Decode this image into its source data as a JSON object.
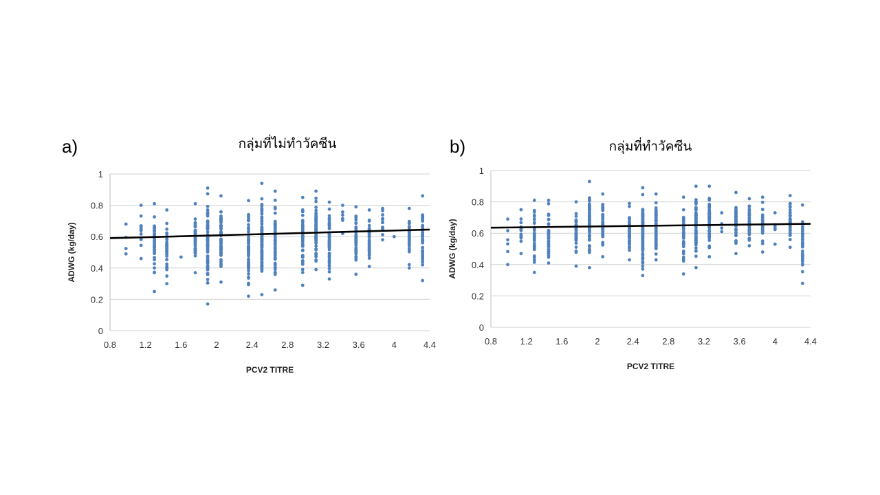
{
  "chart_data": [
    {
      "type": "scatter",
      "panel_label": "a)",
      "title": "กลุ่มที่ไม่ทำวัคซีน",
      "xlabel": "PCV2 TITRE",
      "ylabel": "ADWG (kg/day)",
      "xlim": [
        0.8,
        4.4
      ],
      "ylim": [
        0,
        1
      ],
      "xticks": [
        "0.8",
        "1.2",
        "1.6",
        "2",
        "2.4",
        "2.8",
        "3.2",
        "3.6",
        "4",
        "4.4"
      ],
      "yticks": [
        "0",
        "0.2",
        "0.4",
        "0.6",
        "0.8",
        "1"
      ],
      "grid": true,
      "trendline": {
        "x": [
          0.8,
          4.4
        ],
        "y": [
          0.59,
          0.645
        ]
      },
      "columns": [
        {
          "x": 0.98,
          "min": 0.49,
          "max": 0.68,
          "n": 4
        },
        {
          "x": 1.15,
          "min": 0.46,
          "max": 0.8,
          "n": 14
        },
        {
          "x": 1.3,
          "min": 0.25,
          "max": 0.81,
          "n": 40
        },
        {
          "x": 1.44,
          "min": 0.3,
          "max": 0.77,
          "n": 36
        },
        {
          "x": 1.6,
          "min": 0.47,
          "max": 0.47,
          "n": 1
        },
        {
          "x": 1.76,
          "min": 0.37,
          "max": 0.81,
          "n": 40
        },
        {
          "x": 1.9,
          "min": 0.17,
          "max": 0.91,
          "n": 80
        },
        {
          "x": 2.05,
          "min": 0.31,
          "max": 0.86,
          "n": 60
        },
        {
          "x": 2.36,
          "min": 0.22,
          "max": 0.83,
          "n": 60
        },
        {
          "x": 2.51,
          "min": 0.23,
          "max": 0.94,
          "n": 90
        },
        {
          "x": 2.66,
          "min": 0.26,
          "max": 0.89,
          "n": 70
        },
        {
          "x": 2.97,
          "min": 0.29,
          "max": 0.85,
          "n": 50
        },
        {
          "x": 3.12,
          "min": 0.39,
          "max": 0.89,
          "n": 70
        },
        {
          "x": 3.27,
          "min": 0.33,
          "max": 0.82,
          "n": 50
        },
        {
          "x": 3.42,
          "min": 0.62,
          "max": 0.8,
          "n": 6
        },
        {
          "x": 3.57,
          "min": 0.36,
          "max": 0.79,
          "n": 40
        },
        {
          "x": 3.72,
          "min": 0.41,
          "max": 0.77,
          "n": 40
        },
        {
          "x": 3.87,
          "min": 0.58,
          "max": 0.78,
          "n": 14
        },
        {
          "x": 4.0,
          "min": 0.6,
          "max": 0.6,
          "n": 1
        },
        {
          "x": 4.17,
          "min": 0.4,
          "max": 0.78,
          "n": 40
        },
        {
          "x": 4.32,
          "min": 0.32,
          "max": 0.86,
          "n": 50
        }
      ]
    },
    {
      "type": "scatter",
      "panel_label": "b)",
      "title": "กลุ่มที่ทำวัคซีน",
      "xlabel": "PCV2 TITRE",
      "ylabel": "ADWG (kg/day)",
      "xlim": [
        0.8,
        4.4
      ],
      "ylim": [
        0,
        1
      ],
      "xticks": [
        "0.8",
        "1.2",
        "1.6",
        "2",
        "2.4",
        "2.8",
        "3.2",
        "3.6",
        "4",
        "4.4"
      ],
      "yticks": [
        "0",
        "0.2",
        "0.4",
        "0.6",
        "0.8",
        "1"
      ],
      "grid": true,
      "trendline": {
        "x": [
          0.8,
          4.4
        ],
        "y": [
          0.635,
          0.66
        ]
      },
      "columns": [
        {
          "x": 0.99,
          "min": 0.4,
          "max": 0.69,
          "n": 6
        },
        {
          "x": 1.14,
          "min": 0.47,
          "max": 0.75,
          "n": 16
        },
        {
          "x": 1.29,
          "min": 0.35,
          "max": 0.81,
          "n": 40
        },
        {
          "x": 1.45,
          "min": 0.41,
          "max": 0.81,
          "n": 36
        },
        {
          "x": 1.76,
          "min": 0.39,
          "max": 0.8,
          "n": 40
        },
        {
          "x": 1.91,
          "min": 0.38,
          "max": 0.93,
          "n": 70
        },
        {
          "x": 2.06,
          "min": 0.45,
          "max": 0.85,
          "n": 50
        },
        {
          "x": 2.36,
          "min": 0.43,
          "max": 0.79,
          "n": 50
        },
        {
          "x": 2.51,
          "min": 0.33,
          "max": 0.89,
          "n": 80
        },
        {
          "x": 2.66,
          "min": 0.43,
          "max": 0.85,
          "n": 60
        },
        {
          "x": 2.97,
          "min": 0.34,
          "max": 0.83,
          "n": 50
        },
        {
          "x": 3.11,
          "min": 0.38,
          "max": 0.9,
          "n": 70
        },
        {
          "x": 3.26,
          "min": 0.45,
          "max": 0.9,
          "n": 60
        },
        {
          "x": 3.4,
          "min": 0.61,
          "max": 0.73,
          "n": 4
        },
        {
          "x": 3.56,
          "min": 0.47,
          "max": 0.86,
          "n": 40
        },
        {
          "x": 3.71,
          "min": 0.52,
          "max": 0.82,
          "n": 36
        },
        {
          "x": 3.86,
          "min": 0.48,
          "max": 0.83,
          "n": 30
        },
        {
          "x": 4.0,
          "min": 0.53,
          "max": 0.73,
          "n": 6
        },
        {
          "x": 4.17,
          "min": 0.51,
          "max": 0.84,
          "n": 36
        },
        {
          "x": 4.31,
          "min": 0.28,
          "max": 0.78,
          "n": 40
        }
      ]
    }
  ]
}
